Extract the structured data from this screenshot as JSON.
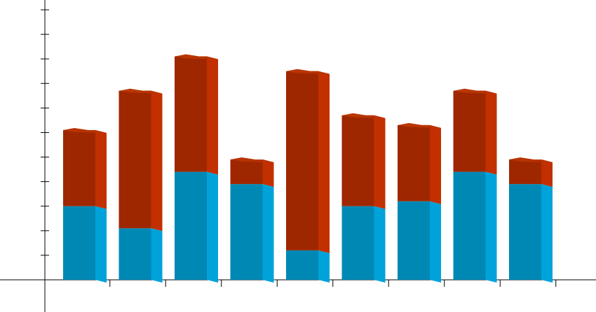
{
  "chart_data": {
    "type": "bar",
    "stacked": true,
    "three_d": true,
    "categories": [
      "",
      "",
      "",
      "",
      "",
      "",
      "",
      "",
      "",
      ""
    ],
    "series": [
      {
        "values": [
          3.0,
          2.1,
          4.4,
          3.9,
          1.2,
          3.0,
          3.2,
          4.4,
          3.9,
          0
        ]
      },
      {
        "values": [
          3.1,
          5.6,
          4.7,
          1.0,
          7.3,
          3.7,
          3.1,
          3.3,
          1.0,
          0
        ]
      }
    ],
    "ylim": [
      0,
      11
    ],
    "grid": false,
    "colors": {
      "series_front": [
        "#0088B5",
        "#9E2700"
      ],
      "series_side": [
        "#00A2DA",
        "#C23000"
      ],
      "series_top": [
        "#0099CC",
        "#B83300"
      ],
      "axis": "#000000",
      "background": "#FFFFFF"
    }
  }
}
